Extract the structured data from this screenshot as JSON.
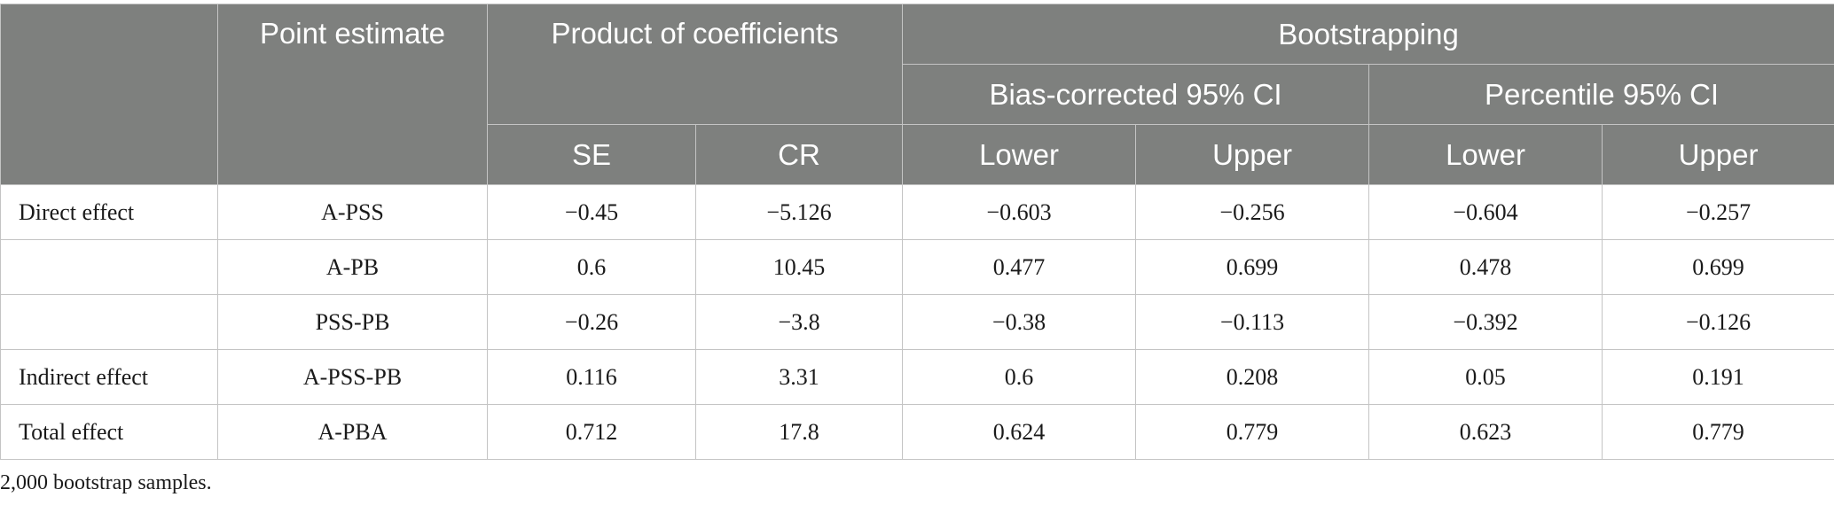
{
  "table": {
    "headers": {
      "point_estimate": "Point estimate",
      "product_of_coefficients": "Product of coefficients",
      "bootstrapping": "Bootstrapping",
      "bias_corrected": "Bias-corrected 95% CI",
      "percentile": "Percentile 95% CI",
      "se": "SE",
      "cr": "CR",
      "bc_lower": "Lower",
      "bc_upper": "Upper",
      "pc_lower": "Lower",
      "pc_upper": "Upper"
    },
    "rows": [
      {
        "effect": "Direct effect",
        "path": "A-PSS",
        "se": "−0.45",
        "cr": "−5.126",
        "bc_lower": "−0.603",
        "bc_upper": "−0.256",
        "pc_lower": "−0.604",
        "pc_upper": "−0.257"
      },
      {
        "effect": "",
        "path": "A-PB",
        "se": "0.6",
        "cr": "10.45",
        "bc_lower": "0.477",
        "bc_upper": "0.699",
        "pc_lower": "0.478",
        "pc_upper": "0.699"
      },
      {
        "effect": "",
        "path": "PSS-PB",
        "se": "−0.26",
        "cr": "−3.8",
        "bc_lower": "−0.38",
        "bc_upper": "−0.113",
        "pc_lower": "−0.392",
        "pc_upper": "−0.126"
      },
      {
        "effect": "Indirect effect",
        "path": "A-PSS-PB",
        "se": "0.116",
        "cr": "3.31",
        "bc_lower": "0.6",
        "bc_upper": "0.208",
        "pc_lower": "0.05",
        "pc_upper": "0.191"
      },
      {
        "effect": "Total effect",
        "path": "A-PBA",
        "se": "0.712",
        "cr": "17.8",
        "bc_lower": "0.624",
        "bc_upper": "0.779",
        "pc_lower": "0.623",
        "pc_upper": "0.779"
      }
    ]
  },
  "footnote": "2,000 bootstrap samples."
}
